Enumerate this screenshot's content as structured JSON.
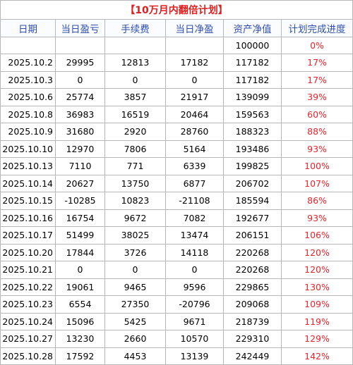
{
  "colors": {
    "title": "#e02020",
    "header": "#2f4fb0",
    "percent": "#e8242b"
  },
  "title": "【10万月内翻倍计划】",
  "headers": [
    "日期",
    "当日盈亏",
    "手续费",
    "当日净盈",
    "资产净值",
    "计划完成进度"
  ],
  "initial_row": {
    "date": "",
    "pnl": "",
    "fee": "",
    "net": "",
    "equity": "100000",
    "progress": "0%"
  },
  "rows": [
    {
      "date": "2025.10.2",
      "pnl": "29995",
      "fee": "12813",
      "net": "17182",
      "equity": "117182",
      "progress": "17%"
    },
    {
      "date": "2025.10.3",
      "pnl": "0",
      "fee": "0",
      "net": "0",
      "equity": "117182",
      "progress": "17%"
    },
    {
      "date": "2025.10.6",
      "pnl": "25774",
      "fee": "3857",
      "net": "21917",
      "equity": "139099",
      "progress": "39%"
    },
    {
      "date": "2025.10.8",
      "pnl": "36983",
      "fee": "16519",
      "net": "20464",
      "equity": "159563",
      "progress": "60%"
    },
    {
      "date": "2025.10.9",
      "pnl": "31680",
      "fee": "2920",
      "net": "28760",
      "equity": "188323",
      "progress": "88%"
    },
    {
      "date": "2025.10.10",
      "pnl": "12970",
      "fee": "7806",
      "net": "5164",
      "equity": "193486",
      "progress": "93%"
    },
    {
      "date": "2025.10.13",
      "pnl": "7110",
      "fee": "771",
      "net": "6339",
      "equity": "199825",
      "progress": "100%"
    },
    {
      "date": "2025.10.14",
      "pnl": "20627",
      "fee": "13750",
      "net": "6877",
      "equity": "206702",
      "progress": "107%"
    },
    {
      "date": "2025.10.15",
      "pnl": "-10285",
      "fee": "10823",
      "net": "-21108",
      "equity": "185594",
      "progress": "86%"
    },
    {
      "date": "2025.10.16",
      "pnl": "16754",
      "fee": "9672",
      "net": "7082",
      "equity": "192677",
      "progress": "93%"
    },
    {
      "date": "2025.10.17",
      "pnl": "51499",
      "fee": "38025",
      "net": "13474",
      "equity": "206151",
      "progress": "106%"
    },
    {
      "date": "2025.10.20",
      "pnl": "17844",
      "fee": "3726",
      "net": "14118",
      "equity": "220268",
      "progress": "120%"
    },
    {
      "date": "2025.10.21",
      "pnl": "0",
      "fee": "0",
      "net": "0",
      "equity": "220268",
      "progress": "120%"
    },
    {
      "date": "2025.10.22",
      "pnl": "19061",
      "fee": "9465",
      "net": "9596",
      "equity": "229865",
      "progress": "130%"
    },
    {
      "date": "2025.10.23",
      "pnl": "6554",
      "fee": "27350",
      "net": "-20796",
      "equity": "209068",
      "progress": "109%"
    },
    {
      "date": "2025.10.24",
      "pnl": "15096",
      "fee": "5425",
      "net": "9671",
      "equity": "218739",
      "progress": "119%"
    },
    {
      "date": "2025.10.27",
      "pnl": "13230",
      "fee": "2660",
      "net": "10570",
      "equity": "229310",
      "progress": "129%"
    },
    {
      "date": "2025.10.28",
      "pnl": "17592",
      "fee": "4453",
      "net": "13139",
      "equity": "242449",
      "progress": "142%"
    }
  ]
}
